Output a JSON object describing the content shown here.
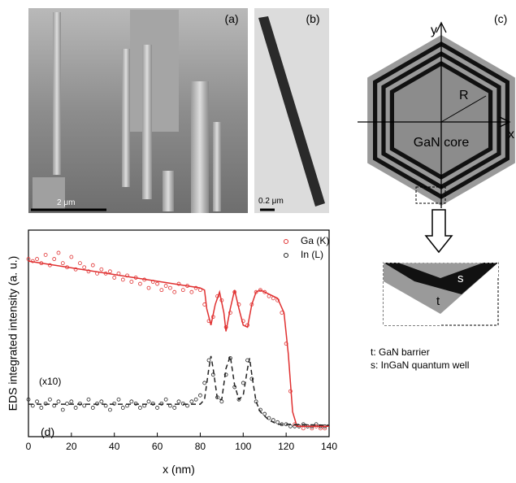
{
  "panels": {
    "a": {
      "label": "(a)",
      "scale": "2 μm"
    },
    "b": {
      "label": "(b)",
      "scale": "0.2 μm"
    },
    "c": {
      "label": "(c)",
      "y_axis": "y",
      "x_axis": "x",
      "radius": "R",
      "core": "GaN core",
      "inset_s": "s",
      "inset_t": "t",
      "legend_t": "t: GaN barrier",
      "legend_s": "s: InGaN quantum well"
    }
  },
  "chart_data": {
    "type": "scatter",
    "panel_label": "(d)",
    "annotation": "(x10)",
    "x_label": "x (nm)",
    "y_label": "EDS integrated intensity (a. u.)",
    "xlim": [
      0,
      140
    ],
    "xticks": [
      0,
      20,
      40,
      60,
      80,
      100,
      120,
      140
    ],
    "ylim": [
      0,
      100
    ],
    "series": [
      {
        "name": "Ga (K)",
        "color": "#e03030",
        "marker": "circle",
        "x": [
          0,
          2,
          4,
          6,
          8,
          10,
          12,
          14,
          16,
          18,
          20,
          22,
          24,
          26,
          28,
          30,
          32,
          34,
          36,
          38,
          40,
          42,
          44,
          46,
          48,
          50,
          52,
          54,
          56,
          58,
          60,
          62,
          64,
          66,
          68,
          70,
          72,
          74,
          76,
          78,
          80,
          82,
          84,
          86,
          88,
          90,
          92,
          94,
          96,
          98,
          100,
          102,
          104,
          106,
          108,
          110,
          112,
          114,
          116,
          118,
          120,
          122,
          124,
          126,
          128,
          130,
          132,
          134,
          136,
          138
        ],
        "values": [
          86,
          85,
          86,
          84,
          88,
          83,
          86,
          89,
          84,
          82,
          87,
          81,
          84,
          82,
          80,
          83,
          79,
          81,
          79,
          80,
          77,
          79,
          76,
          78,
          75,
          77,
          74,
          76,
          72,
          75,
          74,
          71,
          73,
          72,
          70,
          74,
          71,
          73,
          70,
          72,
          71,
          64,
          56,
          58,
          68,
          66,
          53,
          60,
          70,
          64,
          56,
          54,
          64,
          70,
          71,
          70,
          68,
          67,
          66,
          60,
          45,
          22,
          6,
          5,
          4,
          5,
          4,
          5,
          4,
          4
        ]
      },
      {
        "name": "In (L)",
        "color": "#222222",
        "marker": "circle",
        "x": [
          0,
          2,
          4,
          6,
          8,
          10,
          12,
          14,
          16,
          18,
          20,
          22,
          24,
          26,
          28,
          30,
          32,
          34,
          36,
          38,
          40,
          42,
          44,
          46,
          48,
          50,
          52,
          54,
          56,
          58,
          60,
          62,
          64,
          66,
          68,
          70,
          72,
          74,
          76,
          78,
          80,
          82,
          84,
          86,
          88,
          90,
          92,
          94,
          96,
          98,
          100,
          102,
          104,
          106,
          108,
          110,
          112,
          114,
          116,
          118,
          120,
          122,
          124,
          126,
          128,
          130,
          132,
          134,
          136,
          138
        ],
        "values": [
          18,
          15,
          17,
          14,
          16,
          18,
          15,
          17,
          13,
          16,
          17,
          14,
          16,
          15,
          18,
          14,
          16,
          17,
          15,
          13,
          16,
          18,
          14,
          15,
          17,
          16,
          14,
          15,
          17,
          16,
          14,
          16,
          18,
          15,
          14,
          17,
          16,
          15,
          17,
          18,
          20,
          26,
          37,
          30,
          19,
          17,
          30,
          38,
          24,
          18,
          26,
          37,
          28,
          17,
          13,
          11,
          9,
          8,
          7,
          6,
          6,
          5,
          5,
          5,
          6,
          5,
          5,
          6,
          5,
          5
        ]
      },
      {
        "color": "#e03030",
        "marker": "line",
        "dash": false,
        "x": [
          0,
          80,
          82,
          83,
          85,
          87,
          89,
          91,
          92,
          94,
          96,
          98,
          100,
          102,
          104,
          106,
          108,
          112,
          116,
          119,
          121,
          123,
          125,
          140
        ],
        "values": [
          85,
          72,
          71,
          62,
          54,
          64,
          70,
          60,
          51,
          62,
          71,
          62,
          54,
          53,
          64,
          70,
          71,
          69,
          67,
          60,
          40,
          12,
          5,
          5
        ]
      },
      {
        "color": "#222222",
        "marker": "line",
        "dash": true,
        "x": [
          0,
          80,
          82,
          84,
          85,
          86,
          88,
          90,
          92,
          94,
          96,
          98,
          100,
          102,
          103,
          104,
          106,
          108,
          112,
          116,
          120,
          140
        ],
        "values": [
          15.7,
          15.7,
          18,
          33,
          39,
          33,
          18,
          18,
          33,
          39,
          25,
          18,
          20,
          33,
          38,
          30,
          17,
          12,
          8,
          6,
          6,
          5.5
        ]
      }
    ]
  }
}
